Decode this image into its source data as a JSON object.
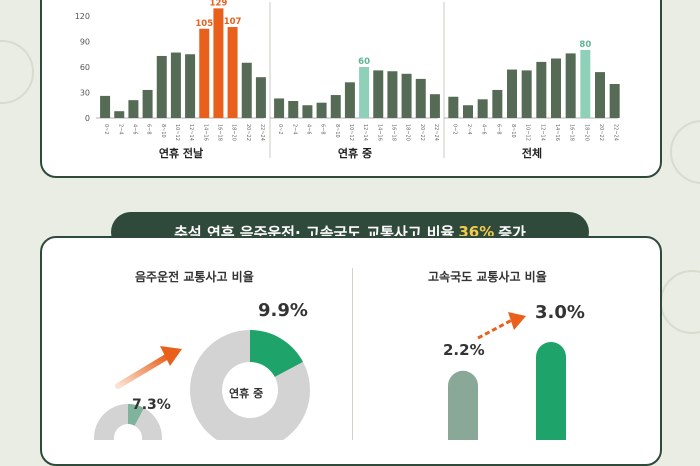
{
  "chart_data": [
    {
      "type": "bar",
      "y_ticks": [
        "0",
        "30",
        "60",
        "90",
        "120"
      ],
      "ylim": [
        0,
        130
      ],
      "x_tick_labels": [
        "0~2",
        "2~4",
        "4~6",
        "6~8",
        "8~10",
        "10~12",
        "12~14",
        "14~16",
        "16~18",
        "18~20",
        "20~22",
        "22~24"
      ],
      "panels": [
        {
          "label": "연휴 전날",
          "values": [
            26,
            8,
            21,
            33,
            73,
            77,
            75,
            105,
            129,
            107,
            65,
            48
          ],
          "highlight": [
            7,
            8,
            9
          ],
          "data_labels": {
            "7": "105",
            "8": "129",
            "9": "107"
          }
        },
        {
          "label": "연휴 중",
          "values": [
            23,
            20,
            15,
            18,
            27,
            42,
            60,
            56,
            55,
            52,
            46,
            28
          ],
          "highlight": [
            6
          ],
          "data_labels": {
            "6": "60"
          }
        },
        {
          "label": "전체",
          "values": [
            25,
            15,
            22,
            33,
            57,
            56,
            66,
            70,
            76,
            80,
            54,
            40
          ],
          "highlight": [
            9
          ],
          "data_labels": {
            "9": "80"
          }
        }
      ]
    },
    {
      "type": "pie",
      "title": "음주운전 교통사고 비율",
      "slices": [
        {
          "label": "연휴 중",
          "value": 9.9
        },
        {
          "label": "",
          "value": 7.3
        }
      ]
    },
    {
      "type": "bar",
      "title": "고속국도 교통사고 비율",
      "values": [
        2.2,
        3.0
      ]
    }
  ],
  "banner": {
    "prefix": "추석 연휴 음주운전· 고속국도 교통사고 비율",
    "highlight": "36%",
    "suffix": "증가"
  },
  "drink": {
    "title": "음주운전 교통사고 비율",
    "big_pct": "9.9%",
    "small_pct": "7.3%",
    "center": "연휴 중"
  },
  "highway": {
    "title": "고속국도 교통사고 비율",
    "left_pct": "2.2%",
    "right_pct": "3.0%"
  },
  "colors": {
    "dark": "#556b55",
    "orange": "#e8601c",
    "mint": "#8fd1b8",
    "green": "#1ea36a",
    "grey": "#d3d3d3",
    "grey_bar": "#8aa898",
    "frame": "#2f4a3a"
  }
}
